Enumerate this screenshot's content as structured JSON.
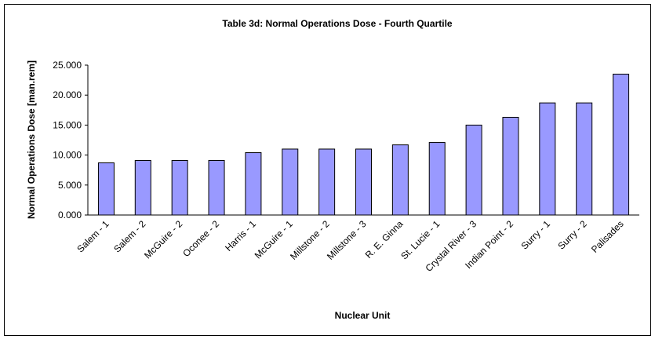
{
  "chart_data": {
    "type": "bar",
    "title": "Table 3d: Normal Operations Dose - Fourth Quartile",
    "x_label": "Nuclear Unit",
    "y_label": "Normal Operations Dose [man.rem]",
    "categories": [
      "Salem - 1",
      "Salem - 2",
      "McGuire - 2",
      "Oconee - 2",
      "Harris - 1",
      "McGuire - 1",
      "Millstone - 2",
      "Millstone - 3",
      "R. E. Ginna",
      "St. Lucie - 1",
      "Crystal River - 3",
      "Indian Point - 2",
      "Surry - 1",
      "Surry - 2",
      "Palisades"
    ],
    "values": [
      8.7,
      9.1,
      9.1,
      9.1,
      10.4,
      11.0,
      11.0,
      11.0,
      11.7,
      12.1,
      15.0,
      16.3,
      18.7,
      18.7,
      23.5
    ],
    "color": "#9999ff",
    "ylim": [
      0,
      25
    ],
    "yticks": [
      {
        "value": 0,
        "label": "0.000"
      },
      {
        "value": 5,
        "label": "5.000"
      },
      {
        "value": 10,
        "label": "10.000"
      },
      {
        "value": 15,
        "label": "15.000"
      },
      {
        "value": 20,
        "label": "20.000"
      },
      {
        "value": 25,
        "label": "25.000"
      }
    ],
    "grid": false
  }
}
